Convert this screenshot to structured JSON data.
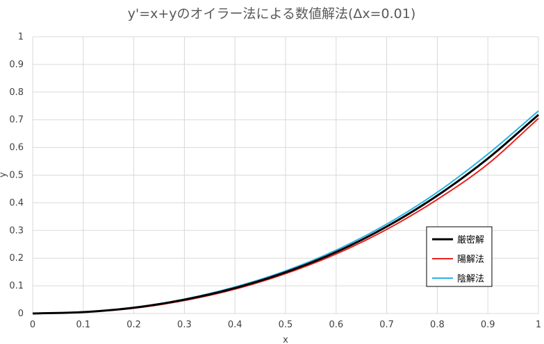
{
  "chart_data": {
    "type": "line",
    "title": "y'=x+yのオイラー法による数値解法(Δx=0.01)",
    "xlabel": "x",
    "ylabel": "y",
    "xlim": [
      0,
      1
    ],
    "ylim": [
      0,
      1
    ],
    "grid": true,
    "legend_position": "bottom-right",
    "x": [
      0.0,
      0.1,
      0.2,
      0.3,
      0.4,
      0.5,
      0.6,
      0.7,
      0.8,
      0.9,
      1.0
    ],
    "x_ticks": [
      "0",
      "0.1",
      "0.2",
      "0.3",
      "0.4",
      "0.5",
      "0.6",
      "0.7",
      "0.8",
      "0.9",
      "1"
    ],
    "y_ticks": [
      "0",
      "0.1",
      "0.2",
      "0.3",
      "0.4",
      "0.5",
      "0.6",
      "0.7",
      "0.8",
      "0.9",
      "1"
    ],
    "series": [
      {
        "name": "厳密解",
        "color": "#000000",
        "values": [
          0.0,
          0.005,
          0.021,
          0.05,
          0.092,
          0.149,
          0.222,
          0.314,
          0.426,
          0.56,
          0.718
        ]
      },
      {
        "name": "陽解法",
        "color": "#e8231e",
        "values": [
          0.0,
          0.005,
          0.019,
          0.047,
          0.088,
          0.144,
          0.215,
          0.304,
          0.412,
          0.54,
          0.705
        ]
      },
      {
        "name": "陰解法",
        "color": "#2ab3e4",
        "values": [
          0.0,
          0.006,
          0.022,
          0.052,
          0.096,
          0.154,
          0.229,
          0.323,
          0.438,
          0.576,
          0.732
        ]
      }
    ]
  }
}
